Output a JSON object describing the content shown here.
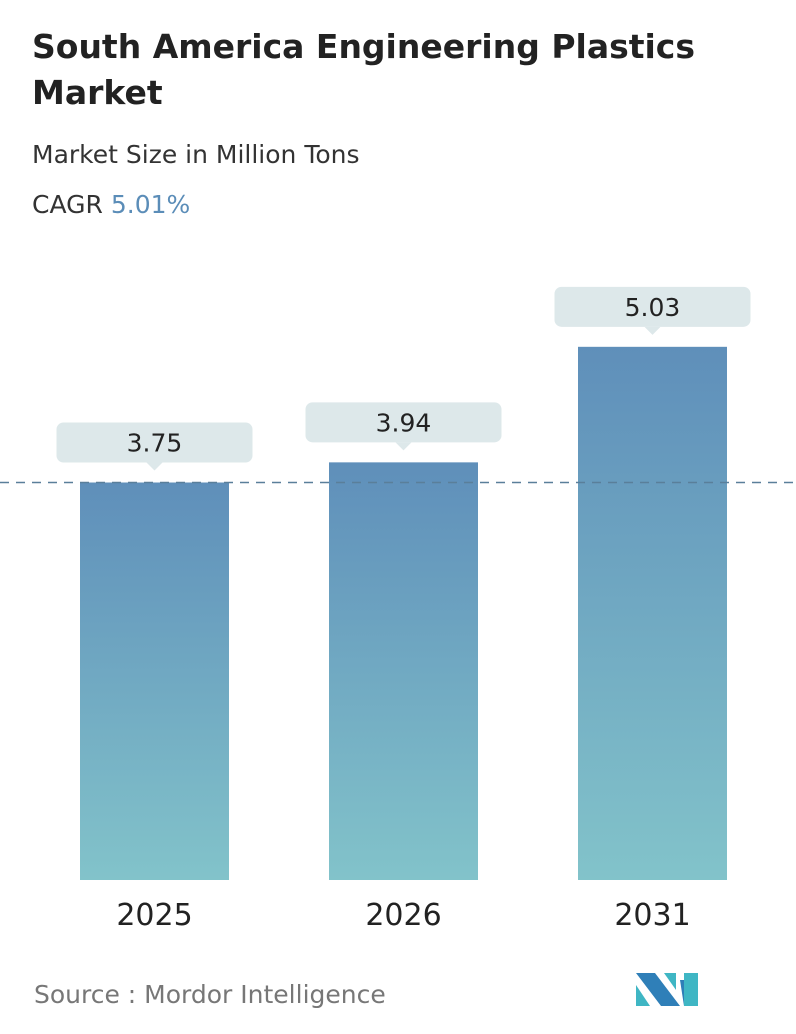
{
  "title": "South America Engineering Plastics Market",
  "subtitle": "Market Size in Million Tons",
  "cagr_label": "CAGR",
  "cagr_value": "5.01%",
  "source": "Source :  Mordor Intelligence",
  "colors": {
    "bar_top": "#5f8fba",
    "bar_bottom": "#82c3ca",
    "callout": "#dde8ea",
    "accent": "#5b8db8"
  },
  "chart_data": {
    "type": "bar",
    "categories": [
      "2025",
      "2026",
      "2031"
    ],
    "values": [
      3.75,
      3.94,
      5.03
    ],
    "data_labels": [
      "3.75",
      "3.94",
      "5.03"
    ],
    "reference_line": {
      "value": 3.75,
      "style": "dashed"
    },
    "grid": false
  }
}
